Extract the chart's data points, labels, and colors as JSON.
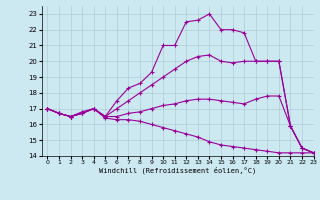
{
  "background_color": "#cce8f0",
  "grid_color": "#b0ccd4",
  "line_color": "#990099",
  "xlim": [
    -0.5,
    23
  ],
  "ylim": [
    14,
    23.5
  ],
  "xlabel": "Windchill (Refroidissement éolien,°C)",
  "xticks": [
    0,
    1,
    2,
    3,
    4,
    5,
    6,
    7,
    8,
    9,
    10,
    11,
    12,
    13,
    14,
    15,
    16,
    17,
    18,
    19,
    20,
    21,
    22,
    23
  ],
  "yticks": [
    14,
    15,
    16,
    17,
    18,
    19,
    20,
    21,
    22,
    23
  ],
  "series": [
    {
      "x": [
        0,
        1,
        2,
        3,
        4,
        5,
        6,
        7,
        8,
        9,
        10,
        11,
        12,
        13,
        14,
        15,
        16,
        17,
        18,
        19,
        20,
        21,
        22,
        23
      ],
      "y": [
        17,
        16.7,
        16.5,
        16.8,
        17.0,
        16.5,
        17.5,
        18.3,
        18.6,
        19.3,
        21.0,
        21.0,
        22.5,
        22.6,
        23.0,
        22.0,
        22.0,
        21.8,
        20.0,
        20.0,
        20.0,
        15.9,
        14.5,
        14.2
      ]
    },
    {
      "x": [
        0,
        1,
        2,
        3,
        4,
        5,
        6,
        7,
        8,
        9,
        10,
        11,
        12,
        13,
        14,
        15,
        16,
        17,
        18,
        19,
        20,
        21,
        22,
        23
      ],
      "y": [
        17,
        16.7,
        16.5,
        16.7,
        17.0,
        16.5,
        17.0,
        17.5,
        18.0,
        18.5,
        19.0,
        19.5,
        20.0,
        20.3,
        20.4,
        20.0,
        19.9,
        20.0,
        20.0,
        20.0,
        20.0,
        15.9,
        14.5,
        14.2
      ]
    },
    {
      "x": [
        0,
        1,
        2,
        3,
        4,
        5,
        6,
        7,
        8,
        9,
        10,
        11,
        12,
        13,
        14,
        15,
        16,
        17,
        18,
        19,
        20,
        21,
        22,
        23
      ],
      "y": [
        17,
        16.7,
        16.5,
        16.7,
        17.0,
        16.5,
        16.5,
        16.7,
        16.8,
        17.0,
        17.2,
        17.3,
        17.5,
        17.6,
        17.6,
        17.5,
        17.4,
        17.3,
        17.6,
        17.8,
        17.8,
        15.9,
        14.5,
        14.2
      ]
    },
    {
      "x": [
        0,
        1,
        2,
        3,
        4,
        5,
        6,
        7,
        8,
        9,
        10,
        11,
        12,
        13,
        14,
        15,
        16,
        17,
        18,
        19,
        20,
        21,
        22,
        23
      ],
      "y": [
        17,
        16.7,
        16.5,
        16.7,
        17.0,
        16.4,
        16.3,
        16.3,
        16.2,
        16.0,
        15.8,
        15.6,
        15.4,
        15.2,
        14.9,
        14.7,
        14.6,
        14.5,
        14.4,
        14.3,
        14.2,
        14.2,
        14.2,
        14.2
      ]
    }
  ]
}
